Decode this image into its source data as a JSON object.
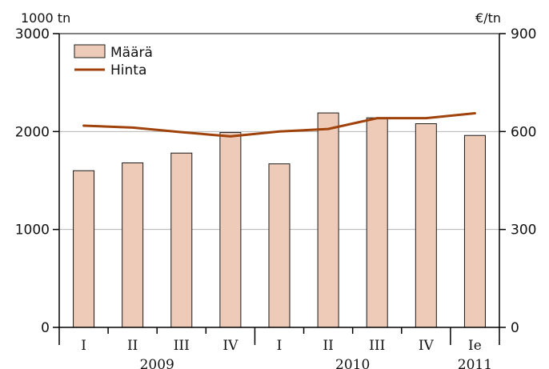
{
  "chart_data": {
    "type": "bar",
    "categories": [
      "I",
      "II",
      "III",
      "IV",
      "I",
      "II",
      "III",
      "IV",
      "Ie"
    ],
    "year_groups": [
      {
        "label": "2009",
        "from": 0,
        "to": 3
      },
      {
        "label": "2010",
        "from": 4,
        "to": 7
      },
      {
        "label": "2011",
        "from": 8,
        "to": 8
      }
    ],
    "series": [
      {
        "name": "Määrä",
        "type": "bar",
        "axis": "left",
        "color": "#edcbb8",
        "values": [
          1600,
          1680,
          1780,
          1990,
          1670,
          2190,
          2140,
          2080,
          1960
        ]
      },
      {
        "name": "Hinta",
        "type": "line",
        "axis": "right",
        "color": "#a0420b",
        "values": [
          618,
          612,
          598,
          585,
          600,
          608,
          641,
          641,
          656
        ]
      }
    ],
    "y_left": {
      "label": "1000 tn",
      "lim": [
        0,
        3000
      ],
      "ticks": [
        "0",
        "1000",
        "2000",
        "3000"
      ]
    },
    "y_right": {
      "label": "€/tn",
      "lim": [
        0,
        900
      ],
      "ticks": [
        "0",
        "300",
        "600",
        "900"
      ]
    },
    "grid": "horizontal",
    "legend": "top-left"
  }
}
